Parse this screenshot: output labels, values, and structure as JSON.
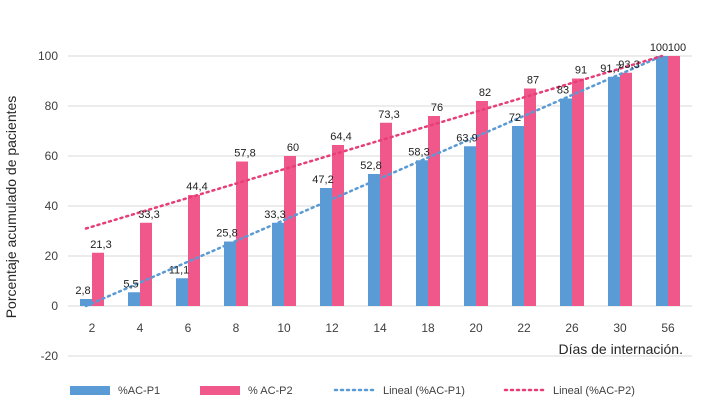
{
  "chart_data": {
    "type": "bar",
    "title": "",
    "xlabel": "Días de internación.",
    "ylabel": "Porcentaje acumulado de pacientes",
    "ylim": [
      -20,
      100
    ],
    "yticks": [
      -20,
      0,
      20,
      40,
      60,
      80,
      100
    ],
    "ytick_labels": [
      "-20",
      "0",
      "20",
      "40",
      "60",
      "80",
      "100"
    ],
    "categories": [
      "2",
      "4",
      "6",
      "8",
      "10",
      "12",
      "14",
      "18",
      "20",
      "22",
      "26",
      "30",
      "56"
    ],
    "series": [
      {
        "name": "%AC-P1",
        "color": "#5b9bd5",
        "values": [
          2.8,
          5.5,
          11.1,
          25.8,
          33.3,
          47.2,
          52.8,
          58.3,
          63.9,
          72,
          83,
          91.7,
          100
        ],
        "labels": [
          "2,8",
          "5,5",
          "11,1",
          "25,8",
          "33,3",
          "47,2",
          "52,8",
          "58,3",
          "63,9",
          "72",
          "83",
          "91,7",
          "100"
        ]
      },
      {
        "name": "% AC-P2",
        "color": "#f0588c",
        "values": [
          21.3,
          33.3,
          44.4,
          57.8,
          60,
          64.4,
          73.3,
          76,
          82,
          87,
          91,
          93.3,
          100
        ],
        "labels": [
          "21,3",
          "33,3",
          "44,4",
          "57,8",
          "60",
          "64,4",
          "73,3",
          "76",
          "82",
          "87",
          "91",
          "93,3",
          "100"
        ]
      }
    ],
    "trendlines": [
      {
        "name": "Lineal (%AC-P1)",
        "color": "#5b9bd5",
        "style": "dotted",
        "start": 0,
        "end": 100
      },
      {
        "name": "Lineal (%AC-P2)",
        "color": "#e83e78",
        "style": "dotted",
        "start": 31,
        "end": 100
      }
    ],
    "legend": {
      "position": "bottom",
      "items": [
        "%AC-P1",
        "% AC-P2",
        "Lineal (%AC-P1)",
        "Lineal (%AC-P2)"
      ]
    }
  }
}
